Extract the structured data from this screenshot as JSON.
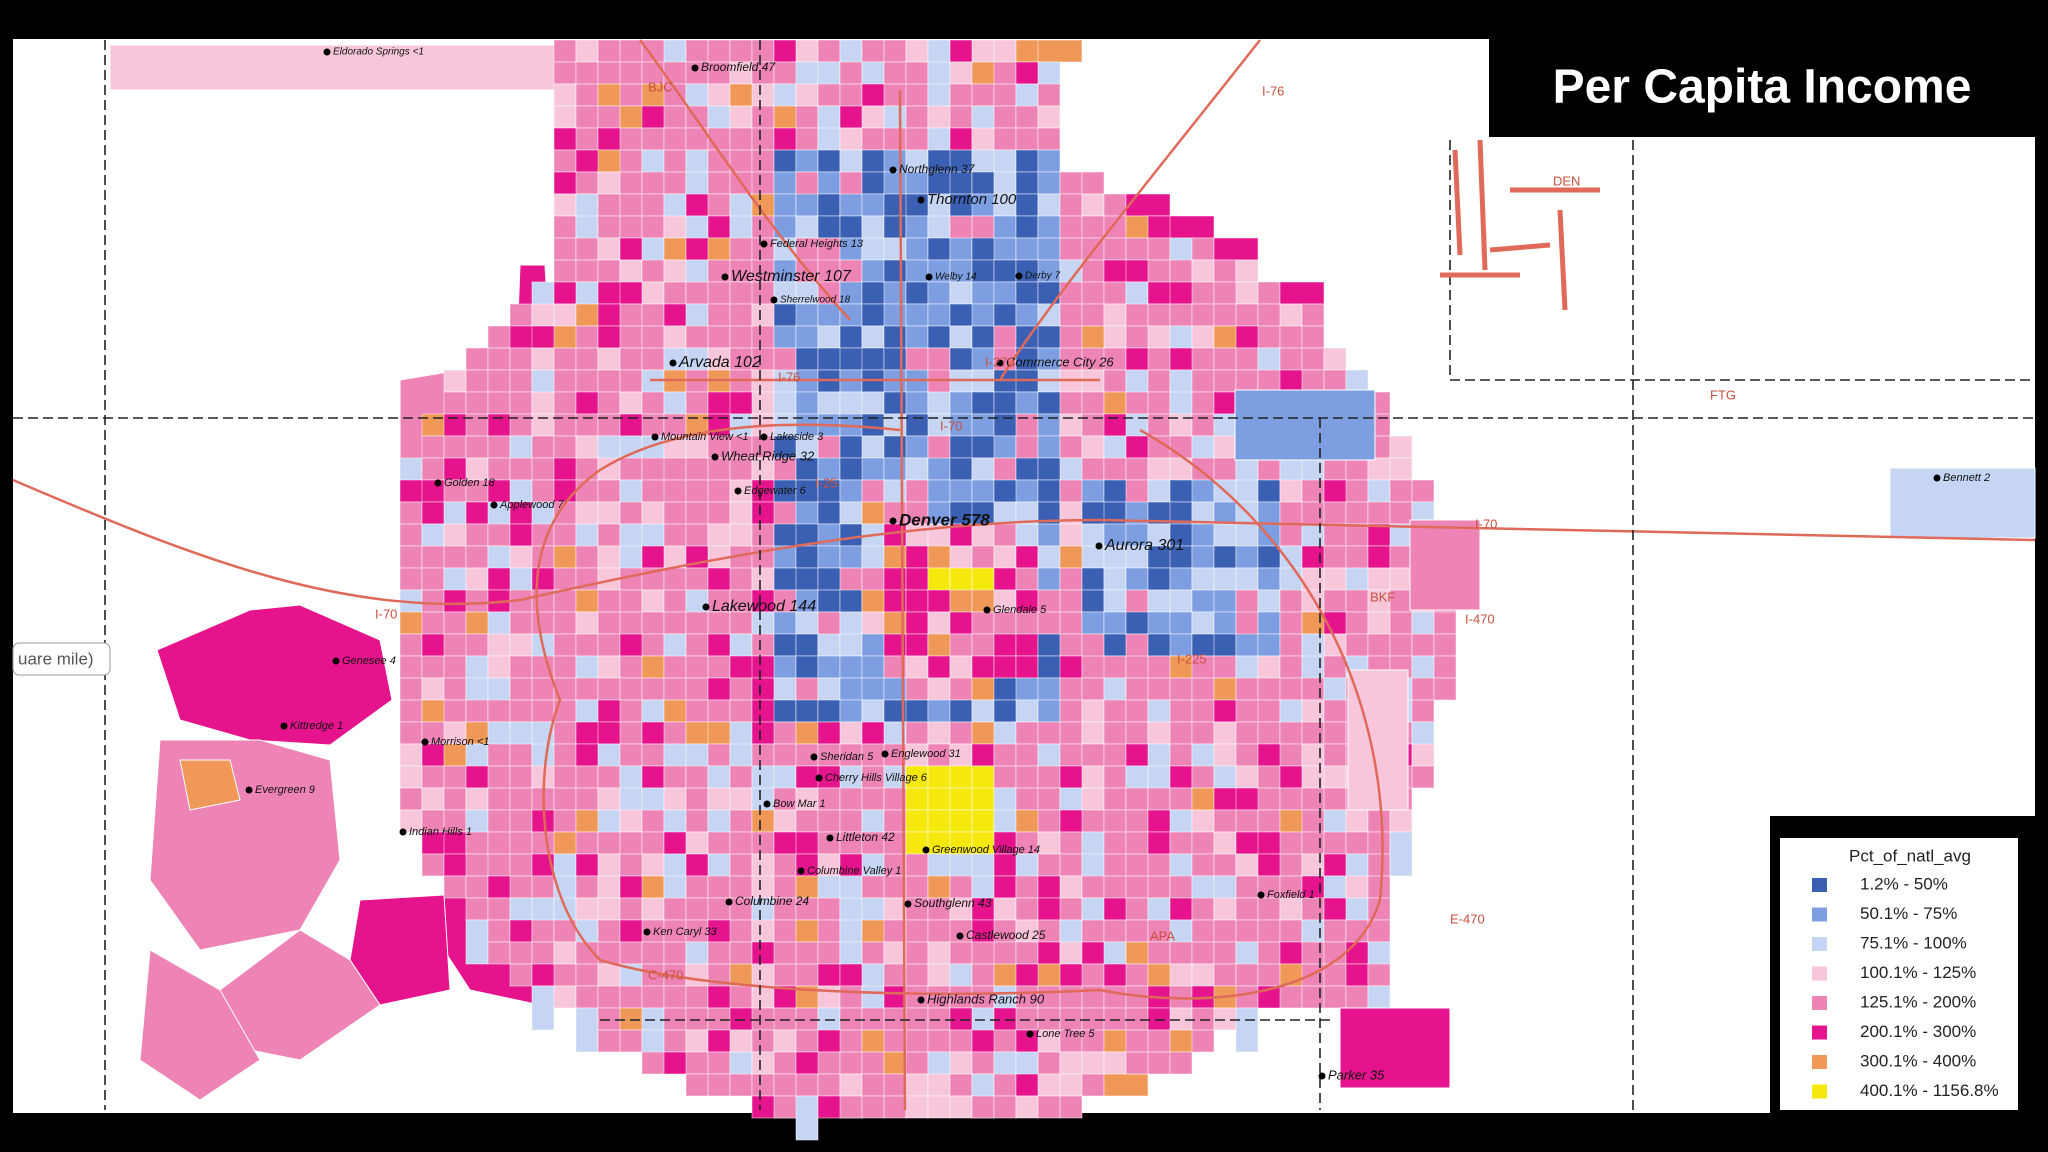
{
  "header": {
    "title": "Per Capita Income"
  },
  "tooltip": {
    "text": "uare mile)"
  },
  "legend": {
    "title": "Pct_of_natl_avg",
    "items": [
      {
        "label": "1.2% - 50%",
        "color": "#3b60b3"
      },
      {
        "label": "50.1% - 75%",
        "color": "#7d9fe2"
      },
      {
        "label": "75.1% - 100%",
        "color": "#c6d5f3"
      },
      {
        "label": "100.1% - 125%",
        "color": "#f8c6da"
      },
      {
        "label": "125.1% - 200%",
        "color": "#ee84b5"
      },
      {
        "label": "200.1% - 300%",
        "color": "#e5148c"
      },
      {
        "label": "300.1% - 400%",
        "color": "#f09858"
      },
      {
        "label": "400.1% - 1156.8%",
        "color": "#f5e80c"
      }
    ]
  },
  "places": [
    "Eldorado Springs <1",
    "Broomfield 47",
    "Northglenn 37",
    "Thornton 100",
    "Federal Heights 13",
    "Westminster 107",
    "Welby 14",
    "Derby 7",
    "Sherrelwood 18",
    "Commerce City 26",
    "Arvada 102",
    "Mountain View <1",
    "Lakeside 3",
    "Wheat Ridge 32",
    "Golden 18",
    "Applewood 7",
    "Edgewater 6",
    "Denver 578",
    "Aurora 301",
    "Glendale 5",
    "Lakewood 144",
    "Genesee 4",
    "Kittredge 1",
    "Morrison <1",
    "Evergreen 9",
    "Sheridan 5",
    "Englewood 31",
    "Cherry Hills Village 6",
    "Bow Mar 1",
    "Littleton 42",
    "Greenwood Village 14",
    "Indian Hills 1",
    "Columbine Valley 1",
    "Southglenn 43",
    "Columbine 24",
    "Castlewood 25",
    "Ken Caryl 33",
    "Highlands Ranch 90",
    "Lone Tree 5",
    "Parker 35",
    "Foxfield 1",
    "Bennett 2"
  ],
  "roads": [
    "I-76",
    "I-270",
    "I-76",
    "I-70",
    "I-25",
    "I-70",
    "I-225",
    "I-470",
    "E-470",
    "C-470",
    "I-70"
  ],
  "airports": [
    "BJC",
    "DEN",
    "FTG",
    "BKF",
    "APA"
  ]
}
